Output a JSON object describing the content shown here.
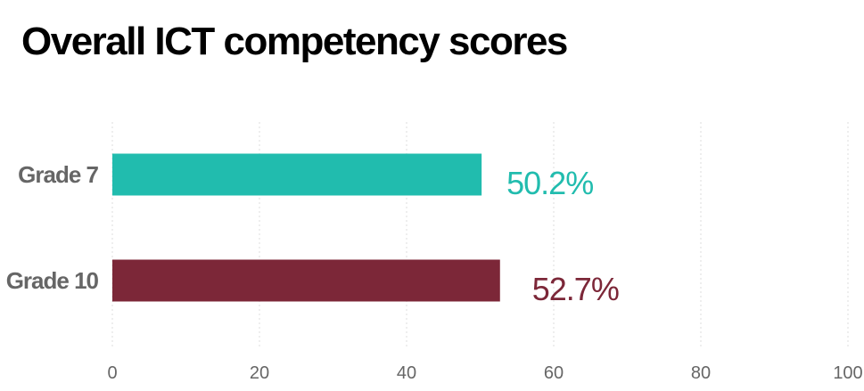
{
  "chart_data": {
    "type": "bar",
    "orientation": "horizontal",
    "title": "Overall ICT competency scores",
    "categories": [
      "Grade 7",
      "Grade 10"
    ],
    "values": [
      50.2,
      52.7
    ],
    "value_labels": [
      "50.2%",
      "52.7%"
    ],
    "colors": [
      "#21bcae",
      "#7c2738"
    ],
    "xlim": [
      0,
      100
    ],
    "xticks": [
      0,
      20,
      40,
      60,
      80,
      100
    ],
    "grid": true,
    "xlabel": "",
    "ylabel": ""
  }
}
